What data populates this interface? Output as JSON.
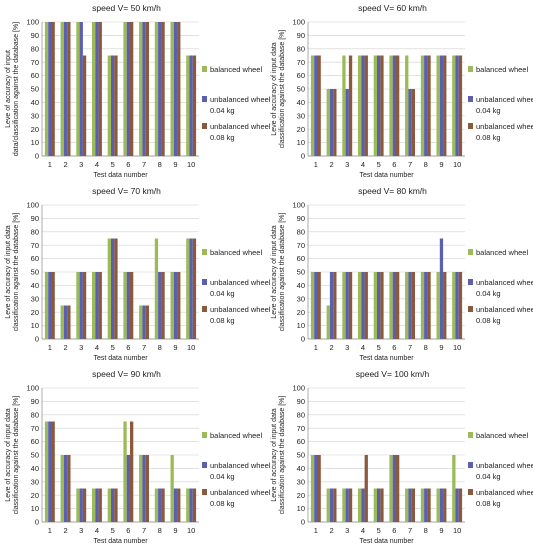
{
  "series_colors": [
    "#9bbb59",
    "#5b5fb0",
    "#8b5a3c"
  ],
  "chart_data": [
    {
      "type": "bar",
      "title": "speed V= 50 km/h",
      "xlabel": "Test data number",
      "ylabel_lines": [
        "Leve of accuracy of input",
        "data/classification against the database [%]"
      ],
      "ylim": [
        0,
        100
      ],
      "yticks": [
        "0",
        "10",
        "20",
        "30",
        "40",
        "50",
        "60",
        "70",
        "80",
        "90",
        "100"
      ],
      "categories": [
        "1",
        "2",
        "3",
        "4",
        "5",
        "6",
        "7",
        "8",
        "9",
        "10"
      ],
      "series": [
        {
          "name": "balanced wheel",
          "values": [
            100,
            100,
            100,
            100,
            75,
            100,
            100,
            100,
            100,
            75
          ]
        },
        {
          "name": "unbalanced wheel 0.04 kg",
          "values": [
            100,
            100,
            100,
            100,
            75,
            100,
            100,
            100,
            100,
            75
          ]
        },
        {
          "name": "unbalanced wheel 0.08 kg",
          "values": [
            100,
            100,
            75,
            100,
            75,
            100,
            100,
            100,
            100,
            75
          ]
        }
      ],
      "legend": [
        {
          "lines": [
            "balanced wheel"
          ]
        },
        {
          "lines": [
            "unbalanced wheel",
            "0.04 kg"
          ]
        },
        {
          "lines": [
            "unbalanced wheel",
            "0.08 kg"
          ]
        }
      ]
    },
    {
      "type": "bar",
      "title": "speed V= 60 km/h",
      "xlabel": "Test data number",
      "ylabel_lines": [
        "Leve of accuracy of input data",
        "classification against the database [%]"
      ],
      "ylim": [
        0,
        100
      ],
      "yticks": [
        "0",
        "10",
        "20",
        "30",
        "40",
        "50",
        "60",
        "70",
        "80",
        "90",
        "100"
      ],
      "categories": [
        "1",
        "2",
        "3",
        "4",
        "5",
        "6",
        "7",
        "8",
        "9",
        "10"
      ],
      "series": [
        {
          "name": "balanced wheel",
          "values": [
            75,
            50,
            75,
            75,
            75,
            75,
            75,
            75,
            75,
            75
          ]
        },
        {
          "name": "unbalanced wheel 0.04 kg",
          "values": [
            75,
            50,
            50,
            75,
            75,
            75,
            50,
            75,
            75,
            75
          ]
        },
        {
          "name": "unbalanced wheel 0.08 kg",
          "values": [
            75,
            50,
            75,
            75,
            75,
            75,
            50,
            75,
            75,
            75
          ]
        }
      ],
      "legend": [
        {
          "lines": [
            "balanced wheel"
          ]
        },
        {
          "lines": [
            "unbalanced wheel",
            "0.04 kg"
          ]
        },
        {
          "lines": [
            "unbalanced wheel",
            "0.08 kg"
          ]
        }
      ]
    },
    {
      "type": "bar",
      "title": "speed V= 70 km/h",
      "xlabel": "Test data number",
      "ylabel_lines": [
        "Leve of accuracy of input data",
        "classification against the database [%]"
      ],
      "ylim": [
        0,
        100
      ],
      "yticks": [
        "0",
        "10",
        "20",
        "30",
        "40",
        "50",
        "60",
        "70",
        "80",
        "90",
        "100"
      ],
      "categories": [
        "1",
        "2",
        "3",
        "4",
        "5",
        "6",
        "7",
        "8",
        "9",
        "10"
      ],
      "series": [
        {
          "name": "balanced wheel",
          "values": [
            50,
            25,
            50,
            50,
            75,
            50,
            25,
            75,
            50,
            75
          ]
        },
        {
          "name": "unbalanced wheel 0.04 kg",
          "values": [
            50,
            25,
            50,
            50,
            75,
            50,
            25,
            50,
            50,
            75
          ]
        },
        {
          "name": "unbalanced wheel 0.08 kg",
          "values": [
            50,
            25,
            50,
            50,
            75,
            50,
            25,
            50,
            50,
            75
          ]
        }
      ],
      "legend": [
        {
          "lines": [
            "balanced wheel"
          ]
        },
        {
          "lines": [
            "unbalanced wheel",
            "0.04 kg"
          ]
        },
        {
          "lines": [
            "unbalanced wheel",
            "0.08 kg"
          ]
        }
      ]
    },
    {
      "type": "bar",
      "title": "speed V= 80 km/h",
      "xlabel": "Test data number",
      "ylabel_lines": [
        "Leve of accuracy of input data",
        "classification against the database [%]"
      ],
      "ylim": [
        0,
        100
      ],
      "yticks": [
        "0",
        "10",
        "20",
        "30",
        "40",
        "50",
        "60",
        "70",
        "80",
        "90",
        "100"
      ],
      "categories": [
        "1",
        "2",
        "3",
        "4",
        "5",
        "6",
        "7",
        "8",
        "9",
        "10"
      ],
      "series": [
        {
          "name": "balanced wheel",
          "values": [
            50,
            25,
            50,
            50,
            50,
            50,
            50,
            50,
            50,
            50
          ]
        },
        {
          "name": "unbalanced wheel 0.04 kg",
          "values": [
            50,
            50,
            50,
            50,
            50,
            50,
            50,
            50,
            75,
            50
          ]
        },
        {
          "name": "unbalanced wheel 0.08 kg",
          "values": [
            50,
            50,
            50,
            50,
            50,
            50,
            50,
            50,
            50,
            50
          ]
        }
      ],
      "legend": [
        {
          "lines": [
            "balanced wheel"
          ]
        },
        {
          "lines": [
            "unbalanced wheel",
            "0.04 kg"
          ]
        },
        {
          "lines": [
            "unbalanced wheel",
            "0.08 kg"
          ]
        }
      ]
    },
    {
      "type": "bar",
      "title": "speed V= 90 km/h",
      "xlabel": "Test data number",
      "ylabel_lines": [
        "Leve of accuracy of input data",
        "classification against the database [%]"
      ],
      "ylim": [
        0,
        100
      ],
      "yticks": [
        "0",
        "10",
        "20",
        "30",
        "40",
        "50",
        "60",
        "70",
        "80",
        "90",
        "100"
      ],
      "categories": [
        "1",
        "2",
        "3",
        "4",
        "5",
        "6",
        "7",
        "8",
        "9",
        "10"
      ],
      "series": [
        {
          "name": "balanced wheel",
          "values": [
            75,
            50,
            25,
            25,
            25,
            75,
            50,
            25,
            50,
            25
          ]
        },
        {
          "name": "unbalanced wheel 0.04 kg",
          "values": [
            75,
            50,
            25,
            25,
            25,
            50,
            50,
            25,
            25,
            25
          ]
        },
        {
          "name": "unbalanced wheel 0.08 kg",
          "values": [
            75,
            50,
            25,
            25,
            25,
            75,
            50,
            25,
            25,
            25
          ]
        }
      ],
      "legend": [
        {
          "lines": [
            "balanced wheel"
          ]
        },
        {
          "lines": [
            "unbalanced wheel",
            "0.04 kg"
          ]
        },
        {
          "lines": [
            "unbalanced wheel",
            "0.08 kg"
          ]
        }
      ]
    },
    {
      "type": "bar",
      "title": "speed V= 100 km/h",
      "xlabel": "Test data number",
      "ylabel_lines": [
        "Leve of accuracy of input data",
        "classification against the database [%]"
      ],
      "ylim": [
        0,
        100
      ],
      "yticks": [
        "0",
        "10",
        "20",
        "30",
        "40",
        "50",
        "60",
        "70",
        "80",
        "90",
        "100"
      ],
      "categories": [
        "1",
        "2",
        "3",
        "4",
        "5",
        "6",
        "7",
        "8",
        "9",
        "10"
      ],
      "series": [
        {
          "name": "balanced wheel",
          "values": [
            50,
            25,
            25,
            25,
            25,
            50,
            25,
            25,
            25,
            50
          ]
        },
        {
          "name": "unbalanced wheel 0.04 kg",
          "values": [
            50,
            25,
            25,
            25,
            25,
            50,
            25,
            25,
            25,
            25
          ]
        },
        {
          "name": "unbalanced wheel 0.08 kg",
          "values": [
            50,
            25,
            25,
            50,
            25,
            50,
            25,
            25,
            25,
            25
          ]
        }
      ],
      "legend": [
        {
          "lines": [
            "balanced wheel"
          ]
        },
        {
          "lines": [
            "unbalanced wheel",
            "0.04 kg"
          ]
        },
        {
          "lines": [
            "unbalanced wheel",
            "0.08 kg"
          ]
        }
      ]
    }
  ]
}
